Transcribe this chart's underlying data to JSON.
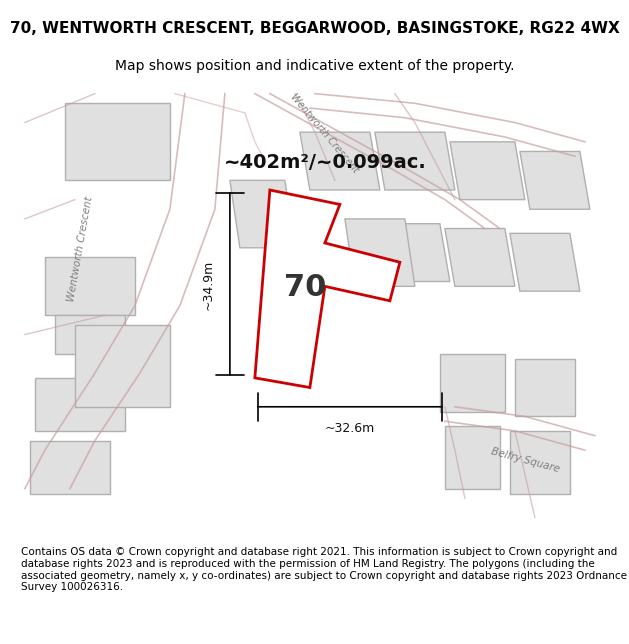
{
  "title": "70, WENTWORTH CRESCENT, BEGGARWOOD, BASINGSTOKE, RG22 4WX",
  "subtitle": "Map shows position and indicative extent of the property.",
  "footer": "Contains OS data © Crown copyright and database right 2021. This information is subject to Crown copyright and database rights 2023 and is reproduced with the permission of HM Land Registry. The polygons (including the associated geometry, namely x, y co-ordinates) are subject to Crown copyright and database rights 2023 Ordnance Survey 100026316.",
  "bg_color": "#f5f5f5",
  "map_bg": "#f0f0f0",
  "area_label": "~402m²/~0.099ac.",
  "plot_number": "70",
  "width_label": "~32.6m",
  "height_label": "~34.9m",
  "plot_color": "#ffffff",
  "plot_edge_color": "#cc0000",
  "building_fill": "#e0e0e0",
  "building_edge": "#b0b0b0",
  "road_color": "#c8a0a0",
  "street_label_color": "#808080",
  "title_fontsize": 11,
  "subtitle_fontsize": 10,
  "footer_fontsize": 7.5
}
